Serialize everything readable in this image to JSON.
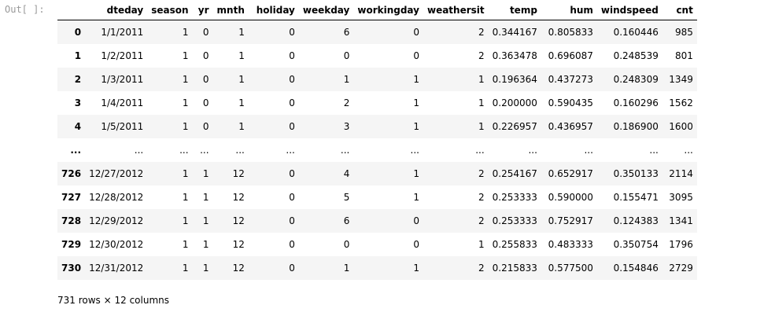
{
  "cell": {
    "prompt": "Out[ ]:"
  },
  "dataframe": {
    "columns": [
      "",
      "dteday",
      "season",
      "yr",
      "mnth",
      "holiday",
      "weekday",
      "workingday",
      "weathersit",
      "temp",
      "hum",
      "windspeed",
      "cnt"
    ],
    "rows": [
      [
        "0",
        "1/1/2011",
        "1",
        "0",
        "1",
        "0",
        "6",
        "0",
        "2",
        "0.344167",
        "0.805833",
        "0.160446",
        "985"
      ],
      [
        "1",
        "1/2/2011",
        "1",
        "0",
        "1",
        "0",
        "0",
        "0",
        "2",
        "0.363478",
        "0.696087",
        "0.248539",
        "801"
      ],
      [
        "2",
        "1/3/2011",
        "1",
        "0",
        "1",
        "0",
        "1",
        "1",
        "1",
        "0.196364",
        "0.437273",
        "0.248309",
        "1349"
      ],
      [
        "3",
        "1/4/2011",
        "1",
        "0",
        "1",
        "0",
        "2",
        "1",
        "1",
        "0.200000",
        "0.590435",
        "0.160296",
        "1562"
      ],
      [
        "4",
        "1/5/2011",
        "1",
        "0",
        "1",
        "0",
        "3",
        "1",
        "1",
        "0.226957",
        "0.436957",
        "0.186900",
        "1600"
      ],
      [
        "...",
        "...",
        "...",
        "...",
        "...",
        "...",
        "...",
        "...",
        "...",
        "...",
        "...",
        "...",
        "..."
      ],
      [
        "726",
        "12/27/2012",
        "1",
        "1",
        "12",
        "0",
        "4",
        "1",
        "2",
        "0.254167",
        "0.652917",
        "0.350133",
        "2114"
      ],
      [
        "727",
        "12/28/2012",
        "1",
        "1",
        "12",
        "0",
        "5",
        "1",
        "2",
        "0.253333",
        "0.590000",
        "0.155471",
        "3095"
      ],
      [
        "728",
        "12/29/2012",
        "1",
        "1",
        "12",
        "0",
        "6",
        "0",
        "2",
        "0.253333",
        "0.752917",
        "0.124383",
        "1341"
      ],
      [
        "729",
        "12/30/2012",
        "1",
        "1",
        "12",
        "0",
        "0",
        "0",
        "1",
        "0.255833",
        "0.483333",
        "0.350754",
        "1796"
      ],
      [
        "730",
        "12/31/2012",
        "1",
        "1",
        "12",
        "0",
        "1",
        "1",
        "2",
        "0.215833",
        "0.577500",
        "0.154846",
        "2729"
      ]
    ],
    "shape_text": "731 rows × 12 columns"
  },
  "colors": {
    "prompt": "#999999",
    "stripe": "#f5f5f5",
    "text": "#000000"
  }
}
